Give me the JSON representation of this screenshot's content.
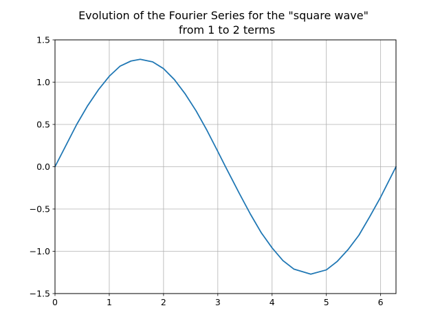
{
  "chart_data": {
    "type": "line",
    "title_line1": "Evolution of the Fourier Series for the \"square wave\"",
    "title_line2": "from 1 to 2 terms",
    "xlabel": "",
    "ylabel": "",
    "xlim": [
      0,
      6.2832
    ],
    "ylim": [
      -1.5,
      1.5
    ],
    "grid": true,
    "x_ticks": [
      0,
      1,
      2,
      3,
      4,
      5,
      6
    ],
    "x_tick_labels": [
      "0",
      "1",
      "2",
      "3",
      "4",
      "5",
      "6"
    ],
    "y_ticks": [
      -1.5,
      -1.0,
      -0.5,
      0.0,
      0.5,
      1.0,
      1.5
    ],
    "y_tick_labels": [
      "−1.5",
      "−1.0",
      "−0.5",
      "0.0",
      "0.5",
      "1.0",
      "1.5"
    ],
    "series": [
      {
        "color": "#1f77b4",
        "x": [
          0.0,
          0.2,
          0.4,
          0.6,
          0.8,
          1.0,
          1.2,
          1.4,
          1.5708,
          1.8,
          2.0,
          2.2,
          2.4,
          2.6,
          2.8,
          3.0,
          3.1416,
          3.4,
          3.6,
          3.8,
          4.0,
          4.2,
          4.4,
          4.7124,
          5.0,
          5.2,
          5.4,
          5.6,
          5.8,
          6.0,
          6.2832
        ],
        "y": [
          0.0,
          0.25,
          0.5,
          0.72,
          0.91,
          1.07,
          1.19,
          1.25,
          1.27,
          1.24,
          1.16,
          1.03,
          0.86,
          0.66,
          0.43,
          0.18,
          0.0,
          -0.32,
          -0.56,
          -0.78,
          -0.96,
          -1.11,
          -1.21,
          -1.27,
          -1.22,
          -1.12,
          -0.98,
          -0.81,
          -0.59,
          -0.36,
          0.0
        ]
      }
    ]
  }
}
